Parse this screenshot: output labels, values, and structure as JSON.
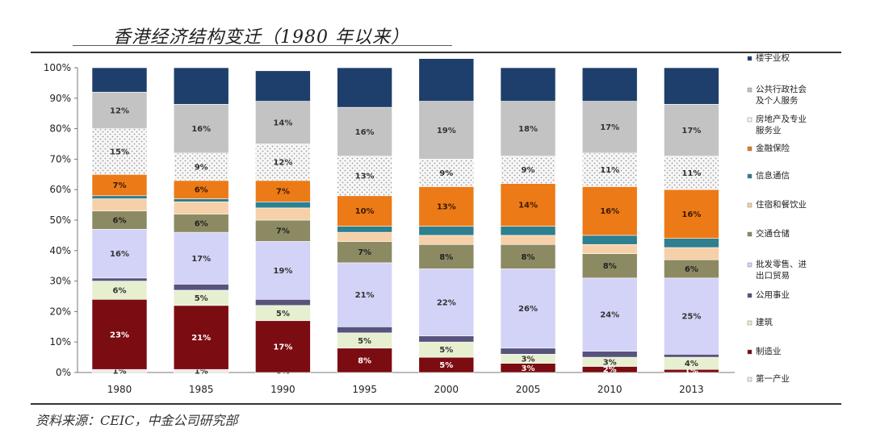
{
  "title": "香港经济结构变迁（1980 年以来）",
  "source": "资料来源：CEIC，中金公司研究部",
  "chart_data": {
    "type": "bar",
    "stacked": true,
    "categories": [
      "1980",
      "1985",
      "1990",
      "1995",
      "2000",
      "2005",
      "2010",
      "2013"
    ],
    "ylim": [
      0,
      100
    ],
    "yticks": [
      "0%",
      "10%",
      "20%",
      "30%",
      "40%",
      "50%",
      "60%",
      "70%",
      "80%",
      "90%",
      "100%"
    ],
    "grid": false,
    "legend_position": "right",
    "series": [
      {
        "name": "第一产业",
        "color": "#f2e6e6",
        "values": [
          1,
          1,
          0,
          0,
          0,
          0,
          0,
          0
        ],
        "labels": [
          "1%",
          "1%",
          "0%",
          "",
          "",
          "",
          "",
          ""
        ],
        "label_color": "#333333"
      },
      {
        "name": "制造业",
        "color": "#7b0c12",
        "values": [
          23,
          21,
          17,
          8,
          5,
          3,
          2,
          1
        ],
        "labels": [
          "23%",
          "21%",
          "17%",
          "8%",
          "5%",
          "3%",
          "2%",
          "1%"
        ],
        "label_color": "#ffffff"
      },
      {
        "name": "建筑",
        "color": "#e6efcf",
        "values": [
          6,
          5,
          5,
          5,
          5,
          3,
          3,
          4
        ],
        "labels": [
          "6%",
          "5%",
          "5%",
          "5%",
          "5%",
          "3%",
          "3%",
          "4%"
        ],
        "label_color": "#333333"
      },
      {
        "name": "公用事业",
        "color": "#58537c",
        "values": [
          1,
          2,
          2,
          2,
          2,
          2,
          2,
          1
        ],
        "labels": [
          "",
          "",
          "",
          "",
          "",
          "",
          "",
          ""
        ],
        "label_color": "#ffffff"
      },
      {
        "name": "批发零售、进出口贸易",
        "color": "#d3d3f8",
        "values": [
          16,
          17,
          19,
          21,
          22,
          26,
          24,
          25
        ],
        "labels": [
          "16%",
          "17%",
          "19%",
          "21%",
          "22%",
          "26%",
          "24%",
          "25%"
        ],
        "label_color": "#333333"
      },
      {
        "name": "交通仓储",
        "color": "#8c8a62",
        "values": [
          6,
          6,
          7,
          7,
          8,
          8,
          8,
          6
        ],
        "labels": [
          "6%",
          "6%",
          "7%",
          "7%",
          "8%",
          "8%",
          "8%",
          "6%"
        ],
        "label_color": "#222222"
      },
      {
        "name": "住宿和餐饮业",
        "color": "#f6d0a8",
        "values": [
          4,
          4,
          4,
          3,
          3,
          3,
          3,
          4
        ],
        "labels": [
          "",
          "",
          "",
          "",
          "",
          "",
          "",
          ""
        ],
        "label_color": "#333333"
      },
      {
        "name": "信息通信",
        "color": "#2e7f8f",
        "values": [
          1,
          1,
          2,
          2,
          3,
          3,
          3,
          3
        ],
        "labels": [
          "",
          "",
          "",
          "",
          "",
          "",
          "",
          ""
        ],
        "label_color": "#ffffff"
      },
      {
        "name": "金融保险",
        "color": "#ec7a17",
        "values": [
          7,
          6,
          7,
          10,
          13,
          14,
          16,
          16
        ],
        "labels": [
          "7%",
          "6%",
          "7%",
          "10%",
          "13%",
          "14%",
          "16%",
          "16%"
        ],
        "label_color": "#3a1a00"
      },
      {
        "name": "房地产及专业服务业",
        "color": "#f4f4f4",
        "values": [
          15,
          9,
          12,
          13,
          9,
          9,
          11,
          11
        ],
        "labels": [
          "15%",
          "9%",
          "12%",
          "13%",
          "9%",
          "9%",
          "11%",
          "11%"
        ],
        "label_color": "#333333",
        "pattern": true
      },
      {
        "name": "公共行政社会及个人服务",
        "color": "#c3c3c3",
        "values": [
          12,
          16,
          14,
          16,
          19,
          18,
          17,
          17
        ],
        "labels": [
          "12%",
          "16%",
          "14%",
          "16%",
          "19%",
          "18%",
          "17%",
          "17%"
        ],
        "label_color": "#333333"
      },
      {
        "name": "楼宇业权",
        "color": "#1e3f6b",
        "values": [
          8,
          12,
          10,
          13,
          14,
          11,
          11,
          12
        ],
        "labels": [
          "",
          "",
          "",
          "",
          "",
          "",
          "",
          ""
        ],
        "label_color": "#ffffff"
      }
    ],
    "legend": [
      {
        "lines": [
          "楼宇业权"
        ],
        "color": "#1e3f6b"
      },
      {
        "lines": [
          "公共行政社会",
          "及个人服务"
        ],
        "color": "#c3c3c3"
      },
      {
        "lines": [
          "房地产及专业",
          "服务业"
        ],
        "color": "#f4f4f4"
      },
      {
        "lines": [
          "金融保险"
        ],
        "color": "#ec7a17"
      },
      {
        "lines": [
          "信息通信"
        ],
        "color": "#2e7f8f"
      },
      {
        "lines": [
          "住宿和餐饮业"
        ],
        "color": "#f6d0a8"
      },
      {
        "lines": [
          "交通仓储"
        ],
        "color": "#8c8a62"
      },
      {
        "lines": [
          "批发零售、进",
          "出口贸易"
        ],
        "color": "#d3d3f8"
      },
      {
        "lines": [
          "公用事业"
        ],
        "color": "#58537c"
      },
      {
        "lines": [
          "建筑"
        ],
        "color": "#e6efcf"
      },
      {
        "lines": [
          "制造业"
        ],
        "color": "#7b0c12"
      },
      {
        "lines": [
          "第一产业"
        ],
        "color": "#f2e6e6"
      }
    ]
  }
}
